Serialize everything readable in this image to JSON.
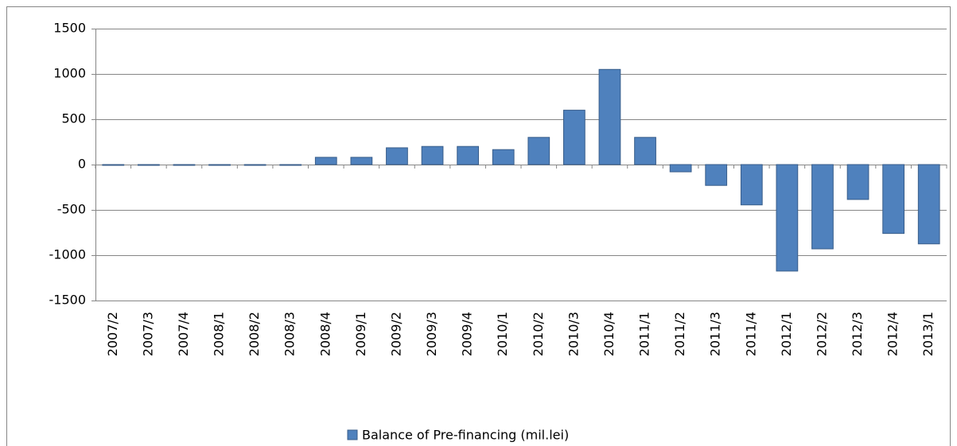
{
  "chart_data": {
    "type": "bar",
    "categories": [
      "2007/2",
      "2007/3",
      "2007/4",
      "2008/1",
      "2008/2",
      "2008/3",
      "2008/4",
      "2009/1",
      "2009/2",
      "2009/3",
      "2009/4",
      "2010/1",
      "2010/2",
      "2010/3",
      "2010/4",
      "2011/1",
      "2011/2",
      "2011/3",
      "2011/4",
      "2012/1",
      "2012/2",
      "2012/3",
      "2012/4",
      "2013/1"
    ],
    "series": [
      {
        "name": "Balance of Pre-financing (mil.lei)",
        "color": "#4f81bd",
        "values": [
          -5,
          -5,
          -5,
          -5,
          -5,
          -5,
          80,
          80,
          185,
          200,
          200,
          165,
          300,
          600,
          1050,
          300,
          -80,
          -230,
          -445,
          -1175,
          -930,
          -385,
          -760,
          -875
        ]
      }
    ],
    "ylim": [
      -1500,
      1500
    ],
    "yticks": [
      -1500,
      -1000,
      -500,
      0,
      500,
      1000,
      1500
    ],
    "grid": true,
    "legend": "bottom"
  }
}
